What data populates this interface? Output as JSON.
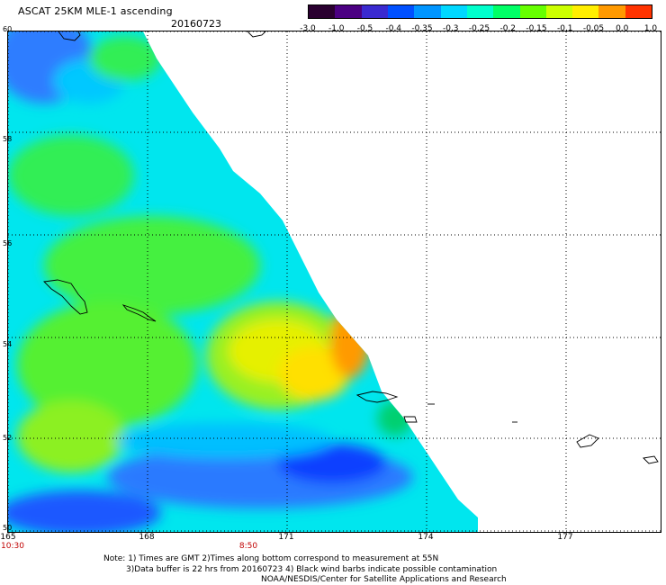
{
  "title": "ASCAT 25KM MLE-1 ascending",
  "date": "20160723",
  "colorbar": {
    "labels": [
      "-3.0",
      "-1.0",
      "-0.5",
      "-0.4",
      "-0.35",
      "-0.3",
      "-0.25",
      "-0.2",
      "-0.15",
      "-0.1",
      "-0.05",
      "0.0",
      "1.0"
    ],
    "colors": [
      "#2a0030",
      "#4b0082",
      "#3a2ad0",
      "#0050ff",
      "#0095ff",
      "#00d8ff",
      "#00ffcc",
      "#00ff66",
      "#66ff00",
      "#ccff00",
      "#ffee00",
      "#ff9900",
      "#ff3300"
    ]
  },
  "map": {
    "lat_labels": [
      "60",
      "58",
      "56",
      "54",
      "52",
      "50"
    ],
    "lon_labels": [
      "165",
      "168",
      "171",
      "174",
      "177"
    ],
    "time_labels": [
      "10:30",
      "8:50"
    ],
    "grid_style": "dotted"
  },
  "notes": [
    "Note: 1) Times are GMT 2)Times along bottom correspond to measurement at 55N",
    "3)Data buffer is 22 hrs from 20160723 4) Black wind barbs indicate possible contamination",
    "NOAA/NESDIS/Center for Satellite Applications and Research"
  ]
}
